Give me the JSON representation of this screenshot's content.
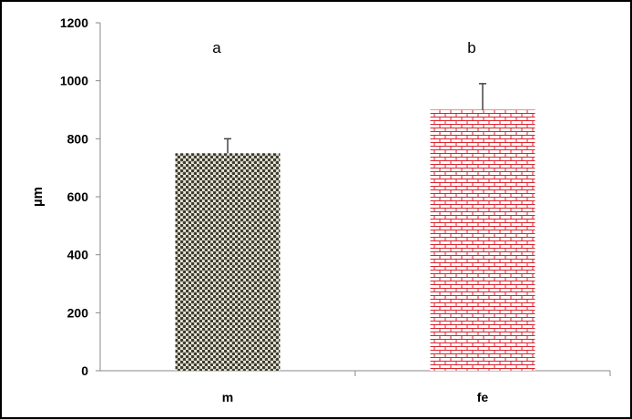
{
  "chart_data": {
    "type": "bar",
    "categories": [
      "m",
      "fe"
    ],
    "values": [
      750,
      900
    ],
    "errors": [
      50,
      90
    ],
    "annotations": [
      "a",
      "b"
    ],
    "title": "",
    "xlabel": "",
    "ylabel": "µm",
    "ylim": [
      0,
      1200
    ],
    "yticks": [
      "0",
      "200",
      "400",
      "600",
      "800",
      "1000",
      "1200"
    ],
    "grid": false,
    "bar_colors": [
      "#4a4a3c",
      "#d9232e"
    ],
    "bar_patterns": [
      "checker",
      "brick"
    ]
  }
}
